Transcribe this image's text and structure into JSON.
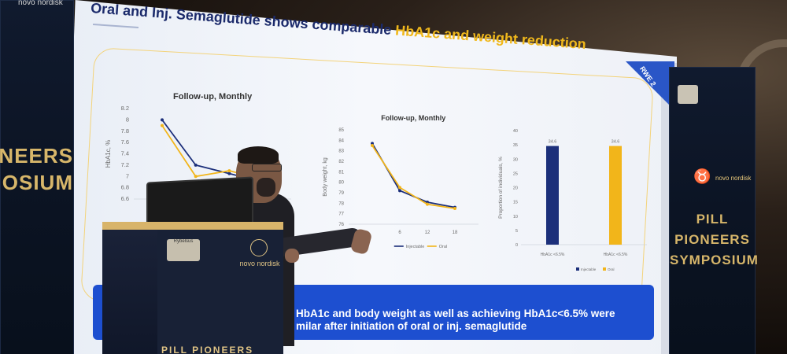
{
  "slide": {
    "title_part1": "Oral and Inj. Semaglutide shows comparable ",
    "title_highlight": "HbA1c and weight reduction",
    "corner_tag": "RWE 2",
    "caption_line1": "HbA1c and body weight as well as achieving HbA1c<6.5% were",
    "caption_line2": "milar after initiation of oral or inj. semaglutide"
  },
  "event": {
    "left_banner_line1": "ONEERS",
    "left_banner_line2": "OSIUM",
    "right_banner_line1": "PILL PIONEERS",
    "right_banner_line2": "SYMPOSIUM",
    "brand_top_left": "novo nordisk",
    "brand_right": "novo nordisk",
    "podium_brand": "novo nordisk",
    "podium_sponsor": "Rybelsus",
    "podium_bottom": "PILL PIONEERS"
  },
  "colors": {
    "injectable": "#1c2f7a",
    "oral": "#f2b51a",
    "caption_bg": "#1d4fd0",
    "title": "#1b2a6b",
    "highlight": "#f0b81c"
  },
  "chart_data": [
    {
      "type": "line",
      "title": "Follow-up, Monthly",
      "ylabel": "HbA1c, %",
      "ylim": [
        6.6,
        8.2
      ],
      "yticks": [
        "8.2",
        "8",
        "7.8",
        "7.6",
        "7.4",
        "7.2",
        "7",
        "6.8",
        "6.6"
      ],
      "series": [
        {
          "name": "Injectable",
          "values": [
            8.0,
            7.2,
            7.05,
            6.9
          ]
        },
        {
          "name": "Oral",
          "values": [
            7.9,
            7.0,
            7.1,
            6.95
          ]
        }
      ]
    },
    {
      "type": "line",
      "title": "Follow-up, Monthly",
      "ylabel": "Body weight, kg",
      "ylim": [
        76,
        85
      ],
      "yticks": [
        "85",
        "84",
        "83",
        "82",
        "81",
        "80",
        "79",
        "78",
        "77",
        "76"
      ],
      "x": [
        "",
        "6",
        "12",
        "18"
      ],
      "series": [
        {
          "name": "Injectable",
          "values": [
            83.7,
            79.2,
            78.1,
            77.6
          ]
        },
        {
          "name": "Oral",
          "values": [
            83.5,
            79.5,
            77.9,
            77.5
          ]
        }
      ],
      "legend": [
        "Injectable",
        "Oral"
      ]
    },
    {
      "type": "bar",
      "ylabel": "Proportion of individuals, %",
      "ylim": [
        0,
        40
      ],
      "yticks": [
        "40",
        "35",
        "30",
        "25",
        "20",
        "15",
        "10",
        "5",
        "0"
      ],
      "categories": [
        "HbA1c <6.5%",
        "HbA1c <6.5%"
      ],
      "series": [
        {
          "name": "Injectable",
          "values": [
            34.6,
            null
          ]
        },
        {
          "name": "Oral",
          "values": [
            null,
            34.6
          ]
        }
      ],
      "data_labels": [
        "34.6",
        "34.6"
      ],
      "legend": [
        "Injectable",
        "Oral"
      ]
    }
  ]
}
